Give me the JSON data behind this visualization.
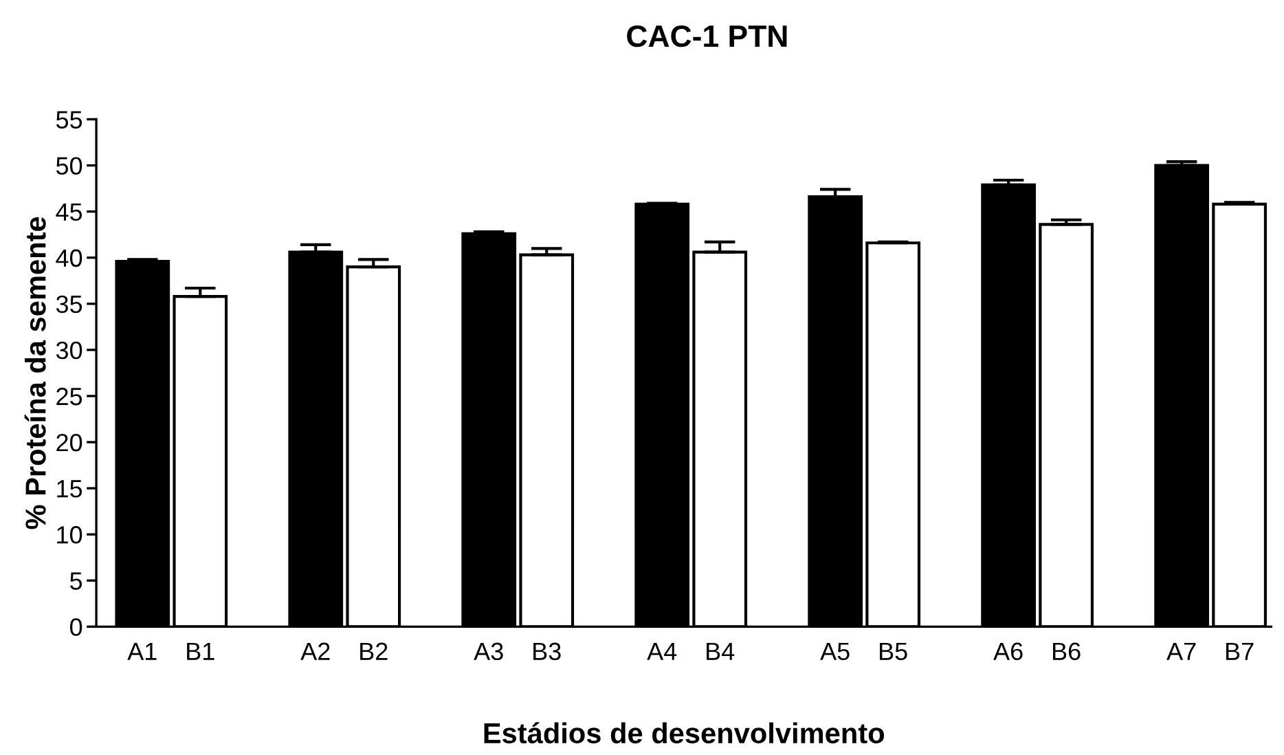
{
  "chart_data": {
    "type": "bar",
    "title": "CAC-1 PTN",
    "xlabel": "Estádios de desenvolvimento",
    "ylabel": "% Proteína da semente",
    "categories": [
      "A1",
      "B1",
      null,
      "A2",
      "B2",
      null,
      "A3",
      "B3",
      null,
      "A4",
      "B4",
      null,
      "A5",
      "B5",
      null,
      "A6",
      "B6",
      null,
      "A7",
      "B7"
    ],
    "series": [
      {
        "color": "#000000",
        "values": [
          39.6,
          null,
          null,
          40.6,
          null,
          null,
          42.6,
          null,
          null,
          45.8,
          null,
          null,
          46.6,
          null,
          null,
          47.9,
          null,
          null,
          50.0,
          null
        ],
        "errors": [
          0.2,
          null,
          null,
          0.8,
          null,
          null,
          0.2,
          null,
          null,
          0.1,
          null,
          null,
          0.8,
          null,
          null,
          0.5,
          null,
          null,
          0.4,
          null
        ]
      },
      {
        "color": "#ffffff",
        "values": [
          null,
          35.8,
          null,
          null,
          39.0,
          null,
          null,
          40.3,
          null,
          null,
          40.6,
          null,
          null,
          41.6,
          null,
          null,
          43.6,
          null,
          null,
          45.8
        ],
        "errors": [
          null,
          0.9,
          null,
          null,
          0.8,
          null,
          null,
          0.7,
          null,
          null,
          1.1,
          null,
          null,
          0.1,
          null,
          null,
          0.5,
          null,
          null,
          0.2
        ]
      }
    ],
    "ylim": [
      0,
      55
    ],
    "yticks": [
      0,
      5,
      10,
      15,
      20,
      25,
      30,
      35,
      40,
      45,
      50,
      55
    ],
    "grid": false,
    "legend": false
  }
}
